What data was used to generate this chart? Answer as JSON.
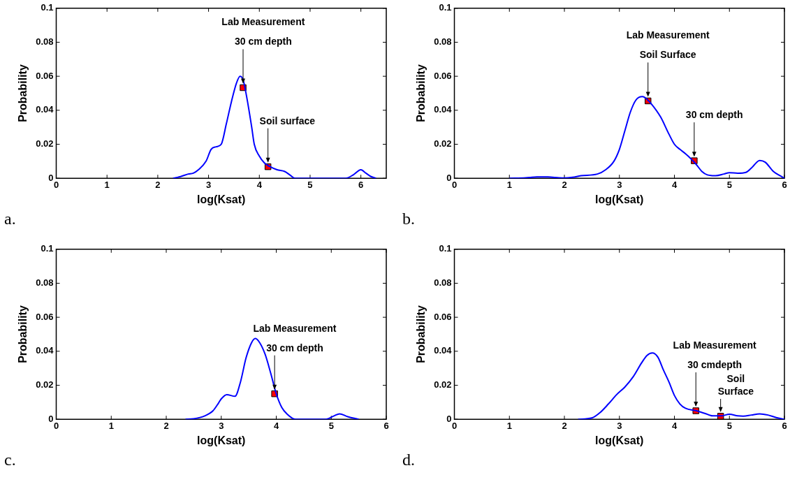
{
  "chart_data": [
    {
      "type": "line",
      "title": "a.",
      "xlabel": "log(Ksat)",
      "ylabel": "Probability",
      "xlim": [
        0,
        6.5
      ],
      "xticks": [
        0,
        1,
        2,
        3,
        4,
        5,
        6
      ],
      "ylim": [
        0,
        0.1
      ],
      "yticks": [
        0,
        0.02,
        0.04,
        0.06,
        0.08,
        0.1
      ],
      "series": [
        {
          "type": "line",
          "color": "#0000ff",
          "x": [
            2.3,
            2.45,
            2.6,
            2.7,
            2.8,
            2.95,
            3.05,
            3.15,
            3.25,
            3.35,
            3.45,
            3.55,
            3.62,
            3.68,
            3.75,
            3.85,
            3.9,
            4.0,
            4.1,
            4.2,
            4.35,
            4.5,
            4.6,
            4.7,
            5.7,
            5.85,
            6.0,
            6.1,
            6.2,
            6.3
          ],
          "values": [
            0,
            0.001,
            0.0025,
            0.003,
            0.005,
            0.01,
            0.017,
            0.0185,
            0.02,
            0.032,
            0.045,
            0.056,
            0.06,
            0.058,
            0.048,
            0.03,
            0.02,
            0.013,
            0.009,
            0.007,
            0.005,
            0.004,
            0.002,
            0,
            0,
            0.002,
            0.005,
            0.003,
            0.001,
            0
          ]
        },
        {
          "type": "scatter",
          "marker": "square",
          "color": "#ff0000",
          "x": [
            3.68,
            4.17
          ],
          "values": [
            0.0533,
            0.0068
          ]
        }
      ],
      "annotations": [
        "Lab Measurement",
        {
          "text": "30 cm depth",
          "x": 3.68,
          "y": 0.0533
        },
        {
          "text": "Soil surface",
          "x": 4.17,
          "y": 0.0068
        }
      ]
    },
    {
      "type": "line",
      "title": "b.",
      "xlabel": "log(Ksat)",
      "ylabel": "Probability",
      "xlim": [
        0,
        6
      ],
      "xticks": [
        0,
        1,
        2,
        3,
        4,
        5,
        6
      ],
      "ylim": [
        0,
        0.1
      ],
      "yticks": [
        0,
        0.02,
        0.04,
        0.06,
        0.08,
        0.1
      ],
      "series": [
        {
          "type": "line",
          "color": "#0000ff",
          "x": [
            1.0,
            1.3,
            1.5,
            1.7,
            1.9,
            2.0,
            2.15,
            2.3,
            2.6,
            2.75,
            2.9,
            3.0,
            3.1,
            3.2,
            3.3,
            3.42,
            3.5,
            3.6,
            3.75,
            3.9,
            4.0,
            4.1,
            4.2,
            4.3,
            4.4,
            4.5,
            4.6,
            4.75,
            4.9,
            5.0,
            5.15,
            5.3,
            5.4,
            5.55,
            5.65,
            5.8,
            5.95,
            6.0
          ],
          "values": [
            0,
            0.0003,
            0.0008,
            0.0008,
            0.0003,
            0.0002,
            0.0006,
            0.0015,
            0.0025,
            0.005,
            0.01,
            0.017,
            0.028,
            0.039,
            0.046,
            0.048,
            0.0465,
            0.043,
            0.036,
            0.026,
            0.02,
            0.017,
            0.0145,
            0.0115,
            0.008,
            0.004,
            0.002,
            0.0015,
            0.0025,
            0.0033,
            0.003,
            0.0035,
            0.006,
            0.0105,
            0.0095,
            0.004,
            0.001,
            0
          ]
        },
        {
          "type": "scatter",
          "marker": "square",
          "color": "#ff0000",
          "x": [
            3.52,
            4.36
          ],
          "values": [
            0.0455,
            0.0103
          ]
        }
      ],
      "annotations": [
        "Lab Measurement",
        {
          "text": "Soil Surface",
          "x": 3.52,
          "y": 0.0455
        },
        {
          "text": "30 cm depth",
          "x": 4.36,
          "y": 0.0103
        }
      ]
    },
    {
      "type": "line",
      "title": "c.",
      "xlabel": "log(Ksat)",
      "ylabel": "Probability",
      "xlim": [
        0,
        6
      ],
      "xticks": [
        0,
        1,
        2,
        3,
        4,
        5,
        6
      ],
      "ylim": [
        0,
        0.1
      ],
      "yticks": [
        0,
        0.02,
        0.04,
        0.06,
        0.08,
        0.1
      ],
      "series": [
        {
          "type": "line",
          "color": "#0000ff",
          "x": [
            2.35,
            2.5,
            2.7,
            2.85,
            2.95,
            3.0,
            3.1,
            3.25,
            3.35,
            3.45,
            3.55,
            3.62,
            3.7,
            3.8,
            3.9,
            4.0,
            4.1,
            4.2,
            4.35,
            4.9,
            5.05,
            5.15,
            5.3,
            5.5
          ],
          "values": [
            0,
            0.0003,
            0.002,
            0.005,
            0.0095,
            0.012,
            0.0145,
            0.0135,
            0.022,
            0.036,
            0.045,
            0.0475,
            0.045,
            0.038,
            0.027,
            0.015,
            0.007,
            0.003,
            0,
            0,
            0.002,
            0.0032,
            0.0015,
            0
          ]
        },
        {
          "type": "scatter",
          "marker": "square",
          "color": "#ff0000",
          "x": [
            3.97
          ],
          "values": [
            0.015
          ]
        }
      ],
      "annotations": [
        "Lab Measurement",
        {
          "text": "30 cm depth",
          "x": 3.97,
          "y": 0.015
        }
      ]
    },
    {
      "type": "line",
      "title": "d.",
      "xlabel": "log(Ksat)",
      "ylabel": "Probability",
      "xlim": [
        0,
        6
      ],
      "xticks": [
        0,
        1,
        2,
        3,
        4,
        5,
        6
      ],
      "ylim": [
        0,
        0.1
      ],
      "yticks": [
        0,
        0.02,
        0.04,
        0.06,
        0.08,
        0.1
      ],
      "series": [
        {
          "type": "line",
          "color": "#0000ff",
          "x": [
            2.25,
            2.5,
            2.65,
            2.8,
            2.95,
            3.1,
            3.25,
            3.4,
            3.5,
            3.6,
            3.7,
            3.8,
            3.9,
            4.0,
            4.1,
            4.2,
            4.4,
            4.55,
            4.7,
            4.85,
            5.0,
            5.15,
            5.25,
            5.4,
            5.55,
            5.7,
            5.85,
            6.0
          ],
          "values": [
            0,
            0.0008,
            0.004,
            0.009,
            0.0145,
            0.019,
            0.025,
            0.033,
            0.0375,
            0.039,
            0.0365,
            0.029,
            0.022,
            0.014,
            0.009,
            0.0065,
            0.005,
            0.0035,
            0.002,
            0.002,
            0.003,
            0.002,
            0.0018,
            0.0025,
            0.0032,
            0.0025,
            0.001,
            0
          ]
        },
        {
          "type": "scatter",
          "marker": "square",
          "color": "#ff0000",
          "x": [
            4.39,
            4.84
          ],
          "values": [
            0.005,
            0.0018
          ]
        }
      ],
      "annotations": [
        "Lab Measurement",
        {
          "text": "30 cmdepth",
          "x": 4.39,
          "y": 0.005
        },
        {
          "text": "Soil\nSurface",
          "x": 4.84,
          "y": 0.0018
        }
      ]
    }
  ]
}
